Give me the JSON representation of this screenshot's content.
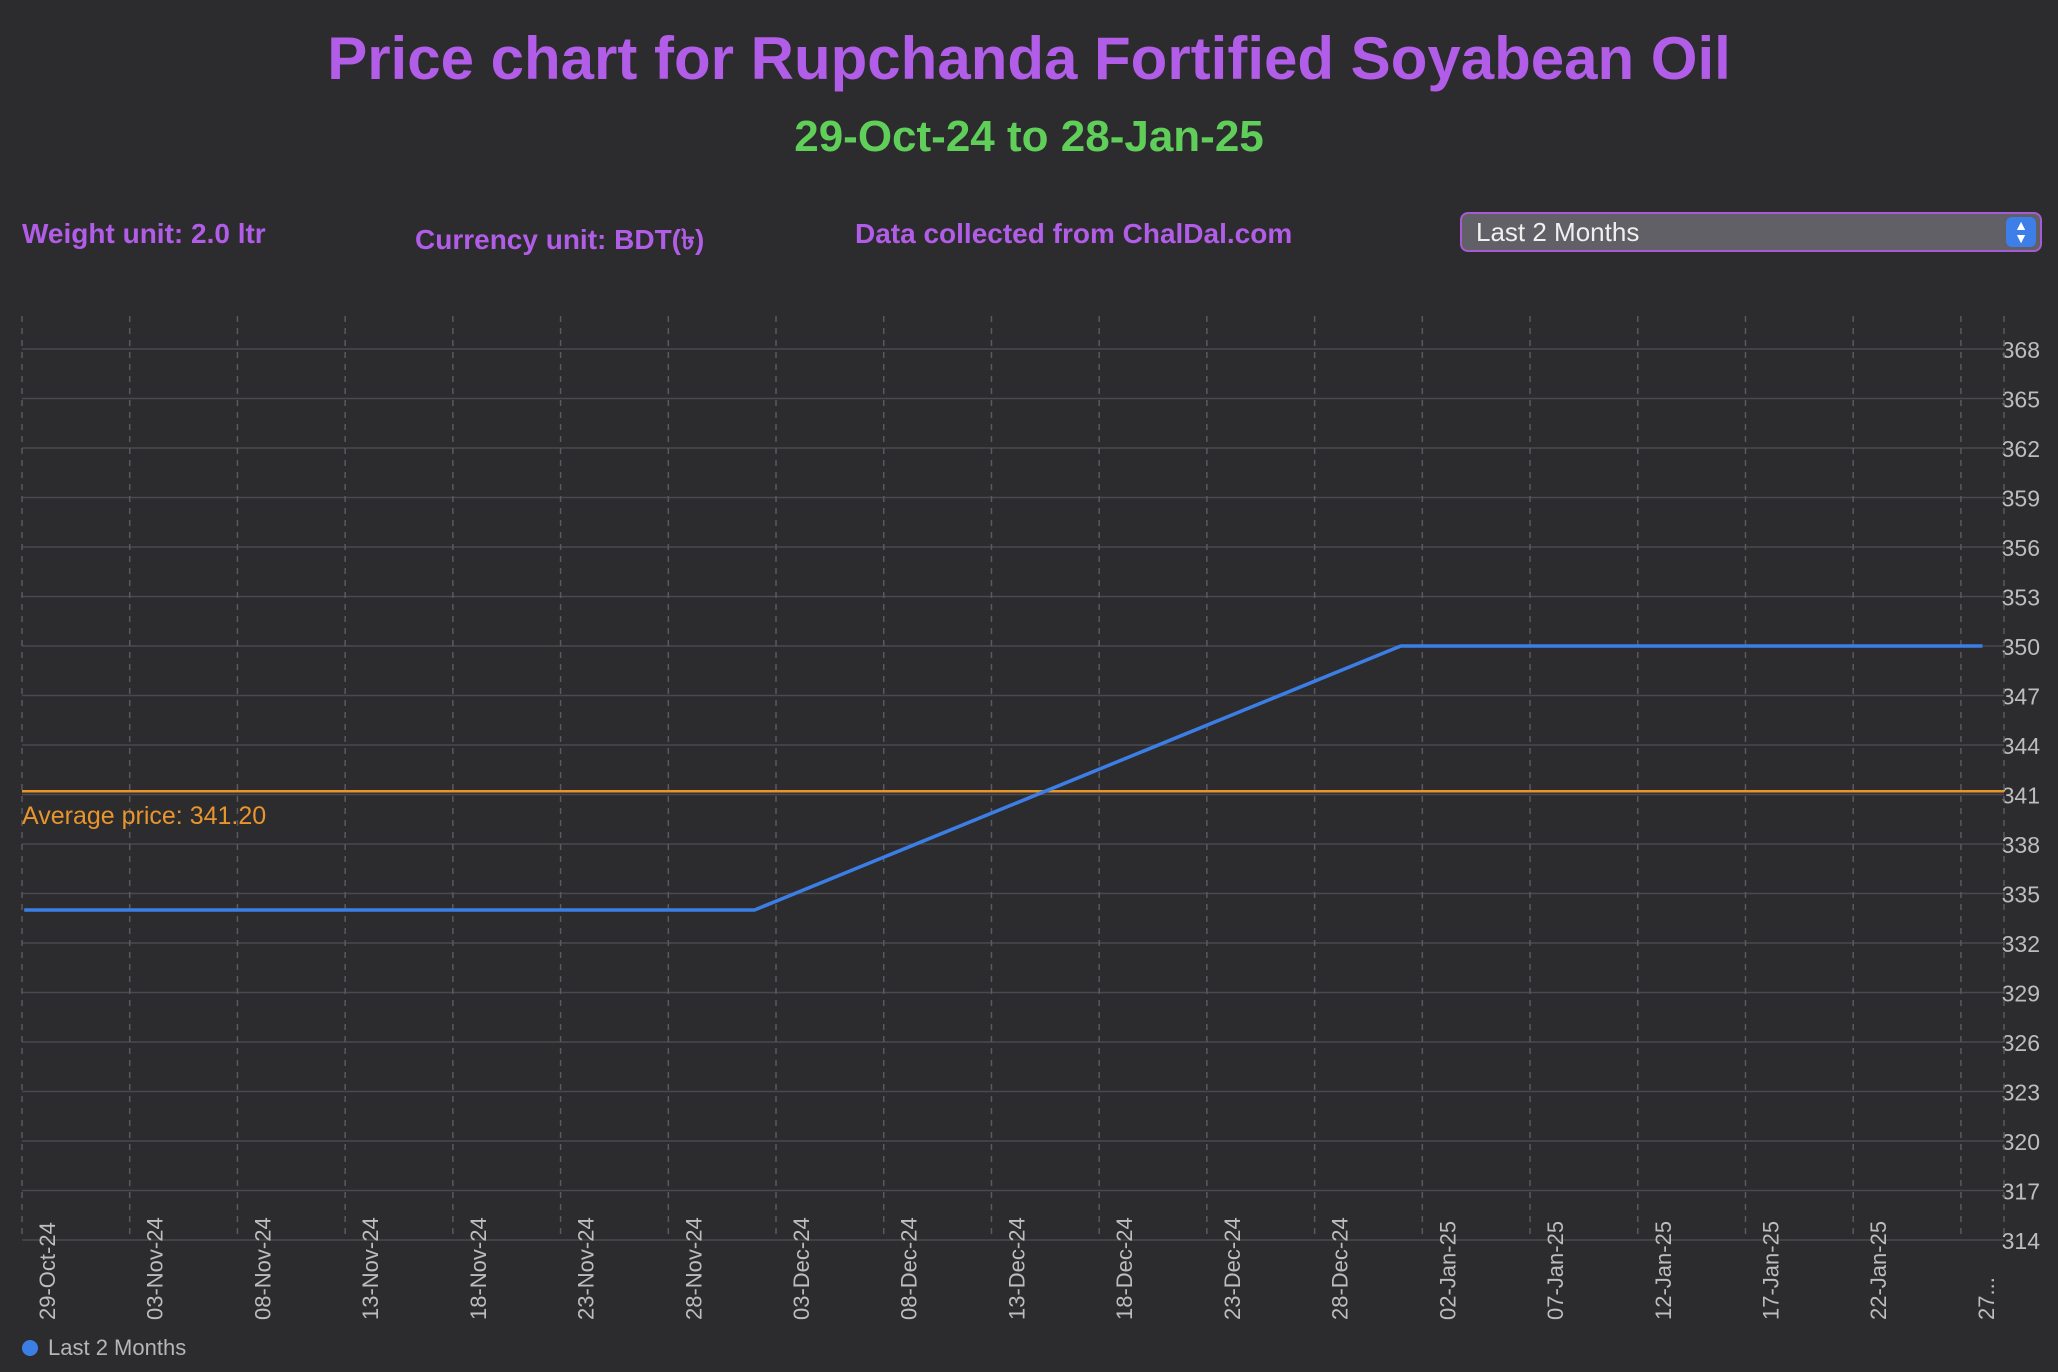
{
  "header": {
    "title": "Price chart for Rupchanda Fortified Soyabean Oil",
    "subtitle": "29-Oct-24 to 28-Jan-25"
  },
  "info": {
    "weight_unit": "Weight unit: 2.0 ltr",
    "currency_unit": "Currency unit: BDT(৳)",
    "source": "Data collected from ChalDal.com"
  },
  "range_select": {
    "value": "Last 2 Months"
  },
  "colors": {
    "title": "#b15de8",
    "subtitle": "#5fcf5a",
    "series": "#3b7fe6",
    "average": "#e8952c"
  },
  "chart_data": {
    "type": "line",
    "title": "Price chart for Rupchanda Fortified Soyabean Oil",
    "subtitle": "29-Oct-24 to 28-Jan-25",
    "x_tick_labels": [
      "29-Oct-24",
      "03-Nov-24",
      "08-Nov-24",
      "13-Nov-24",
      "18-Nov-24",
      "23-Nov-24",
      "28-Nov-24",
      "03-Dec-24",
      "08-Dec-24",
      "13-Dec-24",
      "18-Dec-24",
      "23-Dec-24",
      "28-Dec-24",
      "02-Jan-25",
      "07-Jan-25",
      "12-Jan-25",
      "17-Jan-25",
      "22-Jan-25",
      "27..."
    ],
    "y_ticks": [
      314,
      317,
      320,
      323,
      326,
      329,
      332,
      335,
      338,
      341,
      344,
      347,
      350,
      353,
      356,
      359,
      362,
      365,
      368
    ],
    "ylim": [
      314,
      370
    ],
    "xlim": [
      "29-Oct-24",
      "29-Jan-25"
    ],
    "series": [
      {
        "name": "Last 2 Months",
        "points": [
          {
            "x": "29-Oct-24",
            "y": 334
          },
          {
            "x": "02-Dec-24",
            "y": 334
          },
          {
            "x": "01-Jan-25",
            "y": 350
          },
          {
            "x": "28-Jan-25",
            "y": 350
          }
        ]
      }
    ],
    "average": {
      "value": 341.2,
      "label": "Average price: 341.20"
    },
    "grid": true,
    "legend": "bottom-left"
  }
}
